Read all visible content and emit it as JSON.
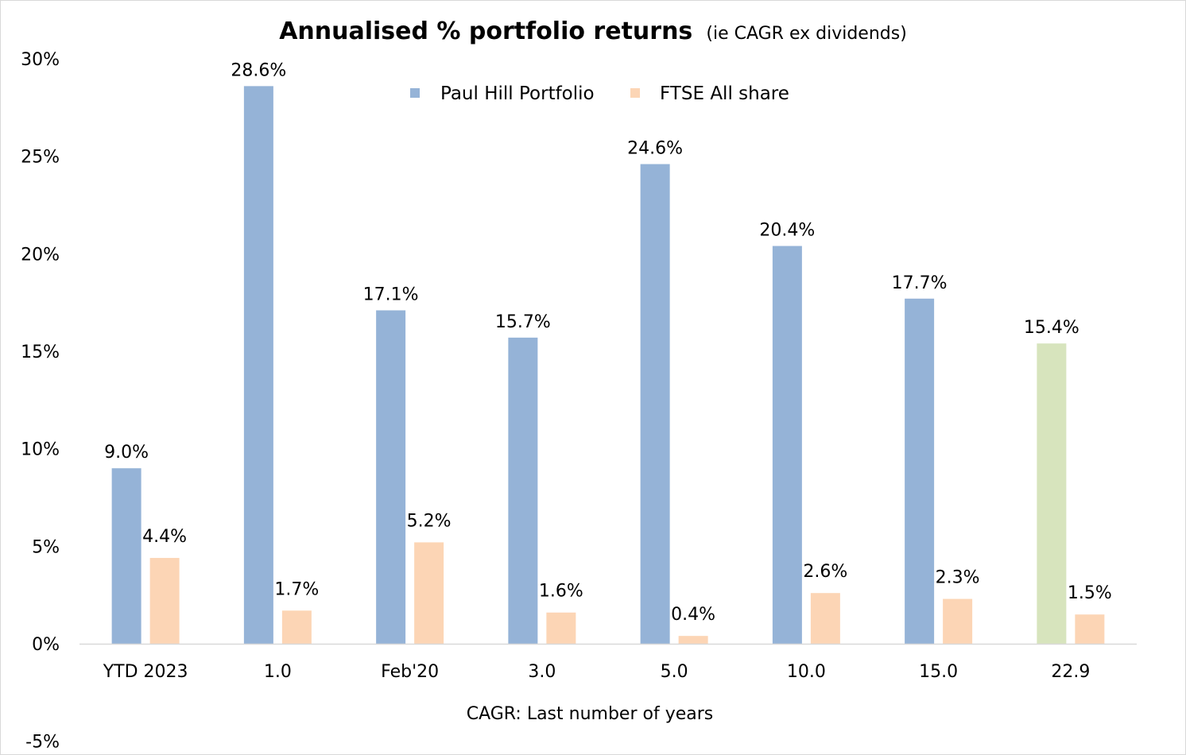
{
  "chart_data": {
    "type": "bar",
    "title": "Annualised % portfolio returns",
    "subtitle": "(ie CAGR ex dividends)",
    "xlabel": "CAGR: Last number of years",
    "ylabel": "",
    "ylim": [
      -5,
      30
    ],
    "y_ticks": [
      "30%",
      "25%",
      "20%",
      "15%",
      "10%",
      "5%",
      "0%",
      "-5%"
    ],
    "y_tick_values": [
      30,
      25,
      20,
      15,
      10,
      5,
      0,
      -5
    ],
    "categories": [
      "YTD 2023",
      "1.0",
      "Feb'20",
      "3.0",
      "5.0",
      "10.0",
      "15.0",
      "22.9"
    ],
    "series": [
      {
        "name": "Paul Hill Portfolio",
        "color": "#95b3d7",
        "values": [
          9.0,
          28.6,
          17.1,
          15.7,
          24.6,
          20.4,
          17.7,
          15.4
        ],
        "labels": [
          "9.0%",
          "28.6%",
          "17.1%",
          "15.7%",
          "24.6%",
          "20.4%",
          "17.7%",
          "15.4%"
        ],
        "point_colors": [
          "#95b3d7",
          "#95b3d7",
          "#95b3d7",
          "#95b3d7",
          "#95b3d7",
          "#95b3d7",
          "#95b3d7",
          "#d7e4bd"
        ]
      },
      {
        "name": "FTSE All share",
        "color": "#fcd5b5",
        "values": [
          4.4,
          1.7,
          5.2,
          1.6,
          0.4,
          2.6,
          2.3,
          1.5
        ],
        "labels": [
          "4.4%",
          "1.7%",
          "5.2%",
          "1.6%",
          "0.4%",
          "2.6%",
          "2.3%",
          "1.5%"
        ],
        "point_colors": [
          "#fcd5b5",
          "#fcd5b5",
          "#fcd5b5",
          "#fcd5b5",
          "#fcd5b5",
          "#fcd5b5",
          "#fcd5b5",
          "#fcd5b5"
        ]
      }
    ],
    "legend_position": "top-center",
    "grid": false,
    "axis_color": "#d9d9d9"
  }
}
